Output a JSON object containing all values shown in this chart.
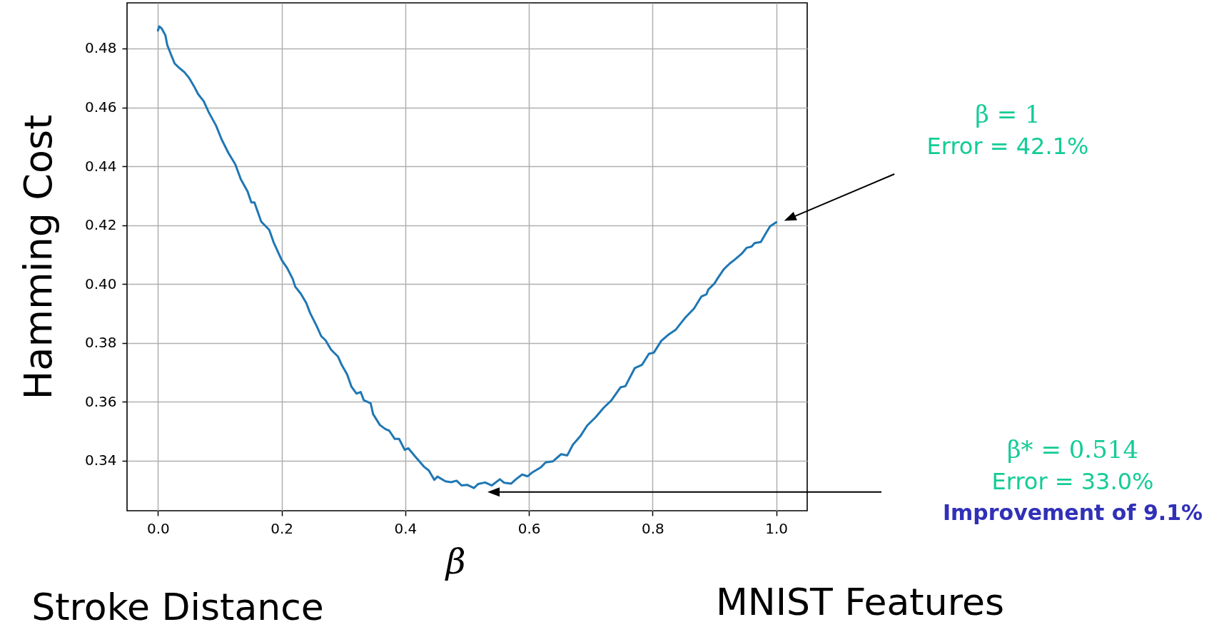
{
  "chart_data": {
    "type": "line",
    "xlabel": "β",
    "ylabel": "Hamming Cost",
    "x": [
      0,
      0.002,
      0.006,
      0.012,
      0.015,
      0.021,
      0.027,
      0.034,
      0.043,
      0.05,
      0.058,
      0.065,
      0.074,
      0.082,
      0.094,
      0.103,
      0.114,
      0.125,
      0.134,
      0.145,
      0.151,
      0.156,
      0.167,
      0.18,
      0.187,
      0.2,
      0.209,
      0.218,
      0.222,
      0.231,
      0.24,
      0.246,
      0.257,
      0.264,
      0.271,
      0.28,
      0.291,
      0.297,
      0.306,
      0.313,
      0.321,
      0.328,
      0.333,
      0.344,
      0.348,
      0.359,
      0.368,
      0.374,
      0.383,
      0.39,
      0.399,
      0.405,
      0.416,
      0.43,
      0.438,
      0.447,
      0.452,
      0.465,
      0.474,
      0.483,
      0.491,
      0.5,
      0.511,
      0.518,
      0.529,
      0.54,
      0.553,
      0.56,
      0.571,
      0.579,
      0.589,
      0.598,
      0.606,
      0.619,
      0.627,
      0.639,
      0.652,
      0.662,
      0.671,
      0.683,
      0.694,
      0.708,
      0.721,
      0.733,
      0.748,
      0.756,
      0.771,
      0.783,
      0.794,
      0.802,
      0.814,
      0.825,
      0.837,
      0.852,
      0.867,
      0.879,
      0.887,
      0.89,
      0.9,
      0.906,
      0.915,
      0.925,
      0.933,
      0.944,
      0.952,
      0.96,
      0.965,
      0.975,
      0.983,
      0.99,
      1.0
    ],
    "series": [
      {
        "color": "#1f77b4",
        "values": [
          0.4861,
          0.4875,
          0.4868,
          0.4845,
          0.4812,
          0.478,
          0.4749,
          0.4735,
          0.4719,
          0.4701,
          0.4673,
          0.4645,
          0.4621,
          0.4584,
          0.4538,
          0.4491,
          0.4445,
          0.4407,
          0.4356,
          0.4314,
          0.4277,
          0.4277,
          0.4212,
          0.4184,
          0.4142,
          0.4082,
          0.4054,
          0.4017,
          0.3991,
          0.3967,
          0.3935,
          0.3902,
          0.3856,
          0.3823,
          0.3809,
          0.3777,
          0.3754,
          0.3726,
          0.3693,
          0.3651,
          0.3628,
          0.3633,
          0.3605,
          0.3595,
          0.3558,
          0.3521,
          0.3507,
          0.3502,
          0.3474,
          0.3474,
          0.3437,
          0.3442,
          0.3414,
          0.338,
          0.3367,
          0.3335,
          0.3346,
          0.333,
          0.3327,
          0.3332,
          0.3316,
          0.3318,
          0.3307,
          0.3321,
          0.3326,
          0.3316,
          0.3337,
          0.3325,
          0.3322,
          0.3337,
          0.3353,
          0.3347,
          0.3361,
          0.3377,
          0.3394,
          0.3398,
          0.3422,
          0.3418,
          0.3454,
          0.3483,
          0.3519,
          0.3548,
          0.358,
          0.3604,
          0.3649,
          0.3653,
          0.3714,
          0.3726,
          0.3763,
          0.3767,
          0.3807,
          0.3827,
          0.3844,
          0.3884,
          0.3917,
          0.3958,
          0.3965,
          0.3981,
          0.4002,
          0.4022,
          0.405,
          0.407,
          0.4083,
          0.4103,
          0.4123,
          0.4127,
          0.4139,
          0.4143,
          0.4172,
          0.4196,
          0.421
        ]
      }
    ],
    "xlim": [
      -0.05,
      1.05
    ],
    "ylim": [
      0.323,
      0.4955
    ],
    "xticks": [
      {
        "value": 0,
        "label": "0.0"
      },
      0.2,
      0.4,
      0.6,
      0.8,
      {
        "value": 1,
        "label": "1.0"
      }
    ],
    "yticks": [
      0.34,
      0.36,
      0.38,
      {
        "value": 0.4,
        "label": "0.40"
      },
      0.42,
      0.44,
      0.46,
      0.48
    ],
    "grid": true,
    "annotations": [
      "β = 1\nError = 42.1%",
      "β* = 0.514\nError = 33.0%\nImprovement of 9.1%",
      "Stroke Distance",
      "MNIST Features"
    ]
  }
}
